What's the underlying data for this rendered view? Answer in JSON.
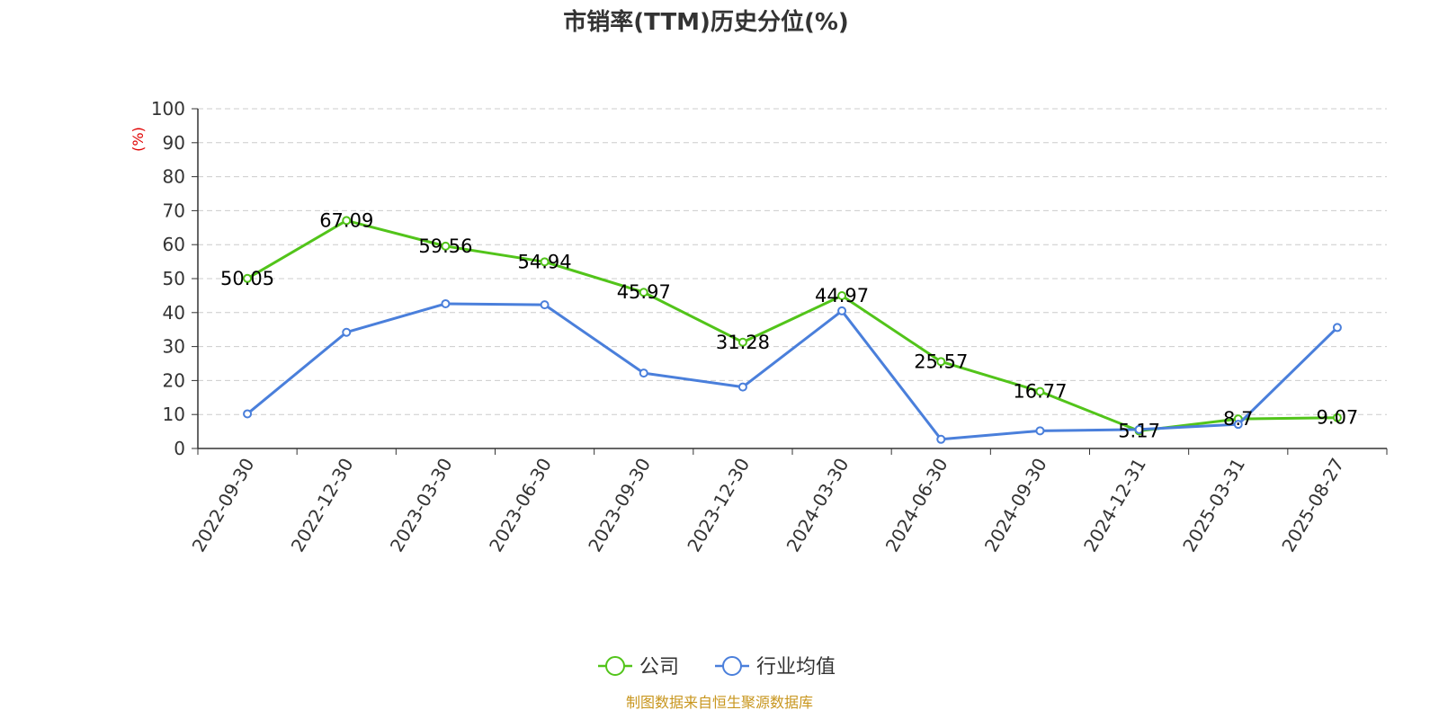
{
  "colors": {
    "company": "#52c41a",
    "industry": "#4a7fdb",
    "unit": "#e00000",
    "source": "#c8961e",
    "grid": "#cccccc",
    "axis": "#333333"
  },
  "chart_data": {
    "type": "line",
    "title": "市销率(TTM)历史分位(%)",
    "ylabel": "(%)",
    "ylim": [
      0,
      100
    ],
    "yticks": [
      0,
      10,
      20,
      30,
      40,
      50,
      60,
      70,
      80,
      90,
      100
    ],
    "grid": true,
    "legend_position": "bottom-center",
    "categories": [
      "2022-09-30",
      "2022-12-30",
      "2023-03-30",
      "2023-06-30",
      "2023-09-30",
      "2023-12-30",
      "2024-03-30",
      "2024-06-30",
      "2024-09-30",
      "2024-12-31",
      "2025-03-31",
      "2025-08-27"
    ],
    "series": [
      {
        "name": "公司",
        "values": [
          50.05,
          67.09,
          59.56,
          54.94,
          45.97,
          31.28,
          44.97,
          25.57,
          16.77,
          5.17,
          8.7,
          9.07
        ],
        "labels": [
          "50.05",
          "67.09",
          "59.56",
          "54.94",
          "45.97",
          "31.28",
          "44.97",
          "25.57",
          "16.77",
          "5.17",
          "8.7",
          "9.07"
        ]
      },
      {
        "name": "行业均值",
        "values": [
          10.2,
          34.2,
          42.6,
          42.3,
          22.2,
          18.1,
          40.5,
          2.7,
          5.2,
          5.6,
          7.1,
          35.6
        ]
      }
    ]
  },
  "source_text": "制图数据来自恒生聚源数据库"
}
